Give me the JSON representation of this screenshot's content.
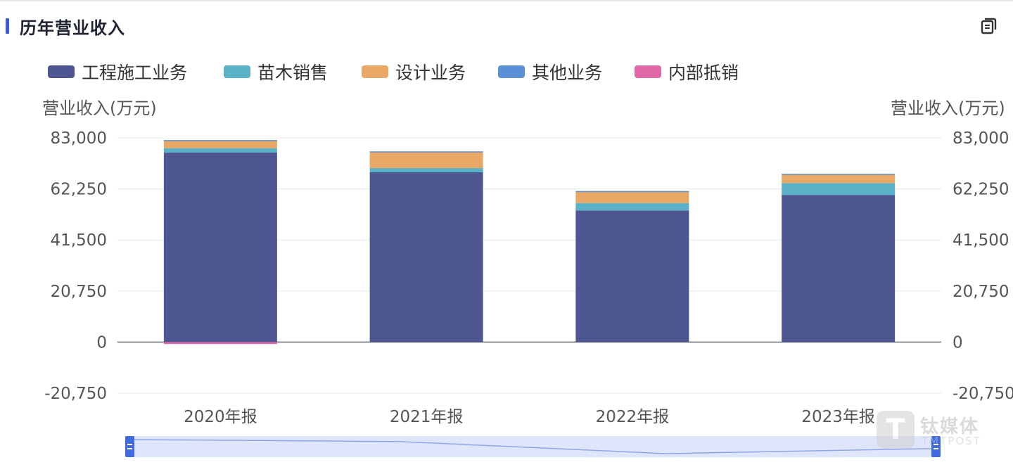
{
  "header": {
    "title": "历年营业收入"
  },
  "colors": {
    "工程施工业务": "#4e5691",
    "苗木销售": "#5ab1c8",
    "设计业务": "#e9a865",
    "其他业务": "#5b8fd6",
    "内部抵销": "#e06aa8",
    "accent": "#3b5bdb"
  },
  "legend": [
    {
      "name": "工程施工业务",
      "color": "#4e5691"
    },
    {
      "name": "苗木销售",
      "color": "#5ab1c8"
    },
    {
      "name": "设计业务",
      "color": "#e9a865"
    },
    {
      "name": "其他业务",
      "color": "#5b8fd6"
    },
    {
      "name": "内部抵销",
      "color": "#e06aa8"
    }
  ],
  "chart_data": {
    "type": "bar",
    "stacked": true,
    "categories": [
      "2020年报",
      "2021年报",
      "2022年报",
      "2023年报"
    ],
    "series": [
      {
        "name": "工程施工业务",
        "values": [
          77000,
          69000,
          53500,
          59800
        ]
      },
      {
        "name": "苗木销售",
        "values": [
          1800,
          1700,
          3000,
          4800
        ]
      },
      {
        "name": "设计业务",
        "values": [
          3200,
          6700,
          4800,
          3700
        ]
      },
      {
        "name": "其他业务",
        "values": [
          100,
          100,
          100,
          100
        ]
      },
      {
        "name": "内部抵销",
        "values": [
          -800,
          0,
          0,
          0
        ]
      }
    ],
    "ylabel_left": "营业收入(万元)",
    "ylabel_right": "营业收入(万元)",
    "ylim": [
      -20750,
      83000
    ],
    "yticks": [
      83000,
      62250,
      41500,
      20750,
      0,
      -20750
    ],
    "ytick_labels": [
      "83,000",
      "62,250",
      "41,500",
      "20,750",
      "0",
      "-20,750"
    ],
    "grid": true,
    "legend_position": "top-left"
  },
  "slider": {
    "trend": [
      100,
      97,
      78,
      86
    ]
  },
  "watermark": {
    "mark": "T",
    "cn": "钛媒体",
    "en": "TMTPOST"
  }
}
